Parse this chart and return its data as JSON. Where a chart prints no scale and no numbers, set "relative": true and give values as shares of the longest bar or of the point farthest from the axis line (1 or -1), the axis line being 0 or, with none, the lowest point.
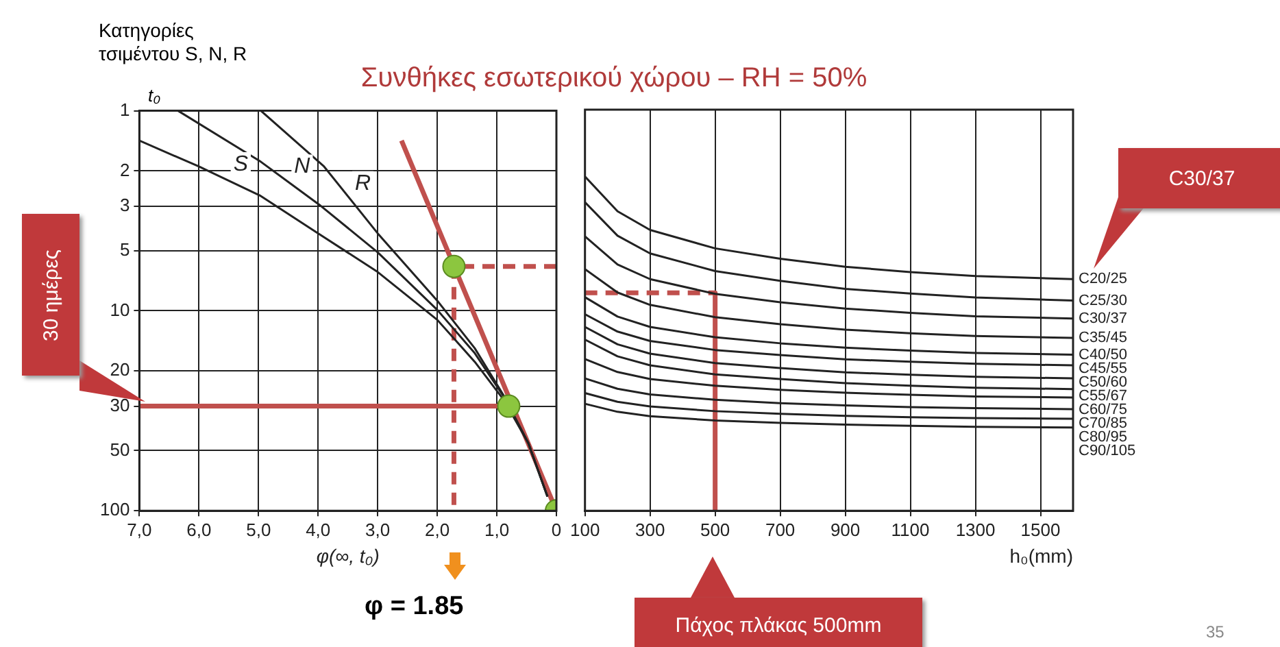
{
  "chart_data": [
    {
      "type": "line",
      "title": "Συνθήκες εσωτερικού χώρου – RH = 50%",
      "xlabel": "φ(∞, t₀)",
      "ylabel": "t₀",
      "xlim": [
        7,
        0
      ],
      "xticks": [
        {
          "value": 7,
          "label": "7,0"
        },
        {
          "value": 6,
          "label": "6,0"
        },
        {
          "value": 5,
          "label": "5,0"
        },
        {
          "value": 4,
          "label": "4,0"
        },
        {
          "value": 3,
          "label": "3,0"
        },
        {
          "value": 2,
          "label": "2,0"
        },
        {
          "value": 1,
          "label": "1,0"
        },
        0
      ],
      "ylim": [
        100,
        1
      ],
      "yticks": [
        1,
        2,
        3,
        5,
        10,
        20,
        30,
        50,
        100
      ],
      "log": "y",
      "grid": true,
      "marker": "none",
      "annotations": [
        "Κατηγορίες τσιμέντου S, N, R",
        "30 ημέρες",
        "φ = 1.85",
        "35"
      ],
      "series": [
        {
          "name": "S",
          "color": "#222222",
          "x": [
            7,
            6,
            4.98,
            4,
            3,
            2,
            1.37,
            0.88,
            0.47,
            0.15
          ],
          "values": [
            1.41,
            1.9,
            2.65,
            4.1,
            6.4,
            11.1,
            18,
            28,
            46,
            85
          ]
        },
        {
          "name": "N",
          "color": "#222222",
          "x": [
            6.35,
            4.96,
            3.98,
            3,
            2,
            1.37,
            0.88,
            0.47,
            0.15
          ],
          "values": [
            1,
            1.8,
            2.95,
            5.1,
            9.9,
            16.3,
            27,
            46,
            85
          ]
        },
        {
          "name": "R",
          "color": "#222222",
          "x": [
            4.96,
            3.9,
            3,
            2,
            1.37,
            0.88,
            0.47,
            0.15
          ],
          "values": [
            1,
            1.9,
            4.1,
            8.9,
            15.4,
            26.7,
            46,
            85
          ]
        },
        {
          "color": "#c0504d",
          "x": [
            2.6,
            0
          ],
          "values": [
            1.41,
            100
          ]
        },
        {
          "color": "#c0504d",
          "x": [
            7,
            0.8
          ],
          "values": [
            30,
            30
          ]
        },
        {
          "color": "#c0504d",
          "x": [
            1.72,
            1.72
          ],
          "values": [
            6,
            100
          ],
          "line_style": "dashed"
        },
        {
          "color": "#c0504d",
          "x": [
            0,
            1.72
          ],
          "values": [
            6,
            6
          ],
          "line_style": "dashed"
        },
        {
          "type": "scatter",
          "color": "#8cc63f",
          "marker": "circle",
          "x": [
            1.72,
            0.8,
            0
          ],
          "values": [
            6,
            30,
            100
          ]
        }
      ]
    },
    {
      "type": "line",
      "relative": true,
      "xlabel": "h₀(mm)",
      "xlim": [
        100,
        1600
      ],
      "xticks": [
        100,
        300,
        500,
        700,
        900,
        1100,
        1300,
        1500
      ],
      "grid": "x",
      "marker": "none",
      "annotations": [
        "C30/37",
        "Πάχος πλάκας 500mm"
      ],
      "x": [
        100,
        200,
        300,
        500,
        700,
        900,
        1100,
        1300,
        1600
      ],
      "series": [
        {
          "name": "C20/25",
          "color": "#222222",
          "values": [
            1.0,
            0.896,
            0.84,
            0.785,
            0.754,
            0.73,
            0.714,
            0.702,
            0.693
          ]
        },
        {
          "name": "C25/30",
          "color": "#222222",
          "values": [
            0.923,
            0.823,
            0.77,
            0.717,
            0.688,
            0.664,
            0.65,
            0.638,
            0.629
          ]
        },
        {
          "name": "C30/37",
          "color": "#222222",
          "values": [
            0.821,
            0.737,
            0.693,
            0.649,
            0.624,
            0.605,
            0.592,
            0.582,
            0.575
          ]
        },
        {
          "name": "C35/45",
          "color": "#222222",
          "values": [
            0.723,
            0.653,
            0.616,
            0.579,
            0.558,
            0.542,
            0.531,
            0.523,
            0.517
          ]
        },
        {
          "name": "C40/50",
          "color": "#222222",
          "values": [
            0.639,
            0.581,
            0.55,
            0.519,
            0.501,
            0.488,
            0.479,
            0.472,
            0.467
          ]
        },
        {
          "name": "C45/55",
          "color": "#222222",
          "values": [
            0.588,
            0.536,
            0.508,
            0.481,
            0.466,
            0.453,
            0.446,
            0.44,
            0.435
          ]
        },
        {
          "name": "C50/60",
          "color": "#222222",
          "values": [
            0.55,
            0.498,
            0.47,
            0.442,
            0.427,
            0.414,
            0.407,
            0.401,
            0.396
          ]
        },
        {
          "name": "C55/67",
          "color": "#222222",
          "values": [
            0.512,
            0.462,
            0.435,
            0.408,
            0.394,
            0.382,
            0.374,
            0.368,
            0.364
          ]
        },
        {
          "name": "C60/75",
          "color": "#222222",
          "values": [
            0.454,
            0.415,
            0.394,
            0.374,
            0.362,
            0.353,
            0.347,
            0.342,
            0.339
          ]
        },
        {
          "name": "C70/85",
          "color": "#222222",
          "values": [
            0.396,
            0.365,
            0.348,
            0.332,
            0.322,
            0.315,
            0.31,
            0.307,
            0.304
          ]
        },
        {
          "name": "C80/95",
          "color": "#222222",
          "values": [
            0.352,
            0.326,
            0.312,
            0.298,
            0.29,
            0.284,
            0.28,
            0.277,
            0.275
          ]
        },
        {
          "name": "C90/105",
          "color": "#222222",
          "values": [
            0.32,
            0.296,
            0.283,
            0.27,
            0.263,
            0.258,
            0.254,
            0.251,
            0.249
          ]
        },
        {
          "color": "#c0504d",
          "x": [
            100,
            500
          ],
          "values": [
            0.652,
            0.652
          ],
          "line_style": "dashed"
        },
        {
          "color": "#c0504d",
          "x": [
            500,
            500
          ],
          "values": [
            0.652,
            0
          ]
        }
      ]
    }
  ]
}
